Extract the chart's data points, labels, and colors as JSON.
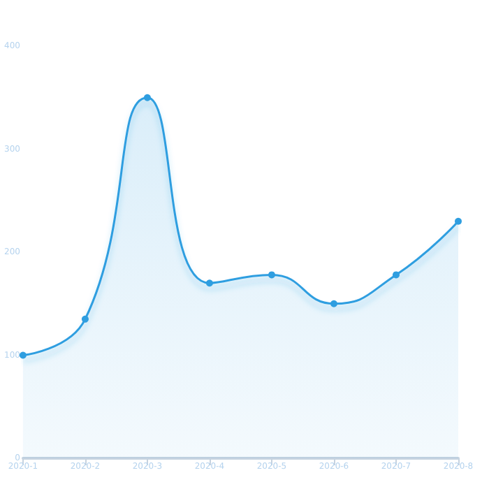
{
  "chart_data": {
    "type": "area",
    "categories": [
      "2020-1",
      "2020-2",
      "2020-3",
      "2020-4",
      "2020-5",
      "2020-6",
      "2020-7",
      "2020-8"
    ],
    "series": [
      {
        "color": "#2f9ee0",
        "values": [
          100,
          135,
          350,
          170,
          178,
          150,
          178,
          230
        ]
      }
    ],
    "ylim": [
      0,
      400
    ],
    "yticks": [
      0,
      100,
      200,
      300,
      400
    ],
    "grid": false,
    "marker": "circle",
    "line_style": "solid"
  }
}
